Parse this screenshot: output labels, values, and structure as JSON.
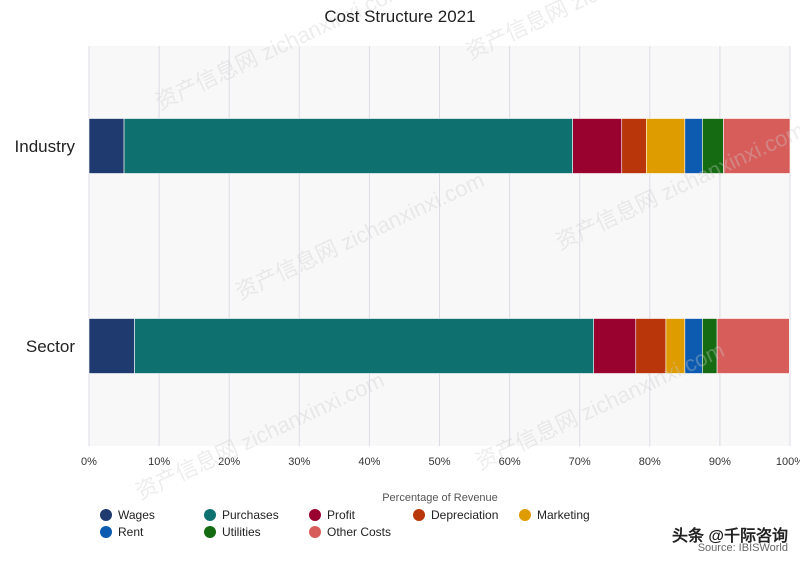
{
  "chart_data": {
    "type": "bar",
    "orientation": "horizontal",
    "stacked": true,
    "title": "Cost Structure 2021",
    "xlabel": "Percentage of Revenue",
    "ylabel": "",
    "xlim": [
      0,
      100
    ],
    "x_ticks": [
      "0%",
      "10%",
      "20%",
      "30%",
      "40%",
      "50%",
      "60%",
      "70%",
      "80%",
      "90%",
      "100%"
    ],
    "categories": [
      "Industry",
      "Sector"
    ],
    "series": [
      {
        "name": "Wages",
        "color": "#1f3a6e",
        "values": [
          5,
          6.5
        ]
      },
      {
        "name": "Purchases",
        "color": "#0e7170",
        "values": [
          64,
          65.5
        ]
      },
      {
        "name": "Profit",
        "color": "#99022e",
        "values": [
          7,
          6
        ]
      },
      {
        "name": "Depreciation",
        "color": "#b8360a",
        "values": [
          3.5,
          4.3
        ]
      },
      {
        "name": "Marketing",
        "color": "#de9c00",
        "values": [
          5.5,
          2.7
        ]
      },
      {
        "name": "Rent",
        "color": "#0c5bb0",
        "values": [
          2.5,
          2.5
        ]
      },
      {
        "name": "Utilities",
        "color": "#146b11",
        "values": [
          3,
          2.1
        ]
      },
      {
        "name": "Other Costs",
        "color": "#d75d5a",
        "values": [
          9.5,
          10.3
        ]
      }
    ],
    "grid": true,
    "legend_position": "bottom-left"
  },
  "overlay": {
    "brand_text": "头条 @千际咨询",
    "source_text": "Source: IBISWorld"
  },
  "watermark_text": "资产信息网 zichanxinxi.com"
}
